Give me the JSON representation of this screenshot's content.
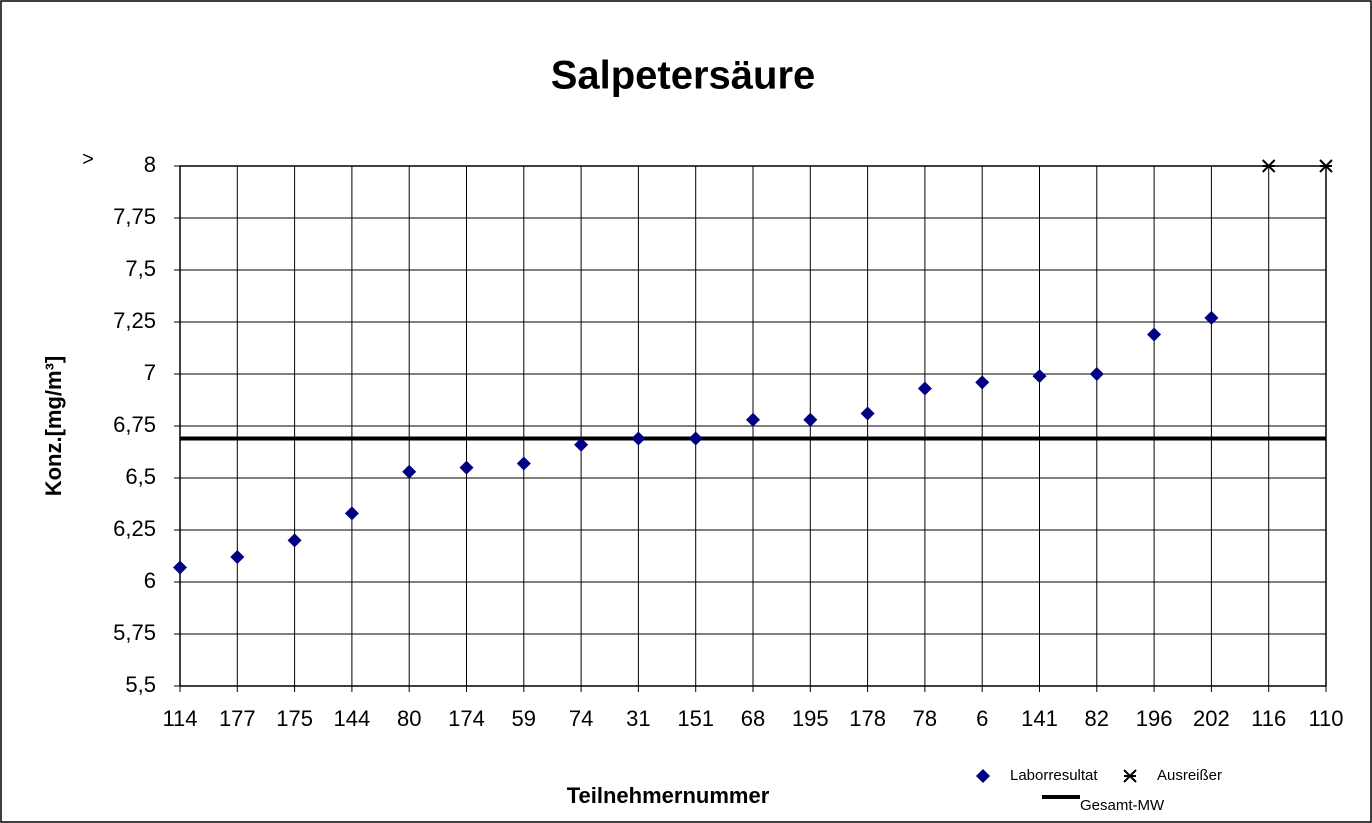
{
  "chart_data": {
    "type": "scatter",
    "title": "Salpetersäure",
    "x_label": "Teilnehmernummer",
    "y_label": "Konz.[mg/m³]",
    "annotation": ">",
    "categories": [
      "114",
      "177",
      "175",
      "144",
      "80",
      "174",
      "59",
      "74",
      "31",
      "151",
      "68",
      "195",
      "178",
      "78",
      "6",
      "141",
      "82",
      "196",
      "202",
      "116",
      "110"
    ],
    "series": [
      {
        "name": "Laborresultat",
        "color": "#000080",
        "marker": "diamond",
        "values": [
          6.07,
          6.12,
          6.2,
          6.33,
          6.53,
          6.55,
          6.57,
          6.66,
          6.69,
          6.69,
          6.78,
          6.78,
          6.81,
          6.93,
          6.96,
          6.99,
          7.0,
          7.19,
          7.27,
          null,
          null
        ]
      },
      {
        "name": "Ausreißer",
        "color": "#000000",
        "marker": "cross",
        "values": [
          null,
          null,
          null,
          null,
          null,
          null,
          null,
          null,
          null,
          null,
          null,
          null,
          null,
          null,
          null,
          null,
          null,
          null,
          null,
          8,
          8
        ]
      }
    ],
    "mean_line": {
      "name": "Gesamt-MW",
      "value": 6.69,
      "color": "#000000"
    },
    "ylim": [
      5.5,
      8
    ],
    "yticks": [
      {
        "value": 5.5,
        "label": "5,5"
      },
      {
        "value": 5.75,
        "label": "5,75"
      },
      6,
      {
        "value": 6.25,
        "label": "6,25"
      },
      {
        "value": 6.5,
        "label": "6,5"
      },
      {
        "value": 6.75,
        "label": "6,75"
      },
      7,
      {
        "value": 7.25,
        "label": "7,25"
      },
      {
        "value": 7.5,
        "label": "7,5"
      },
      {
        "value": 7.75,
        "label": "7,75"
      },
      8
    ],
    "grid": true,
    "legend_position": "bottom-right"
  }
}
